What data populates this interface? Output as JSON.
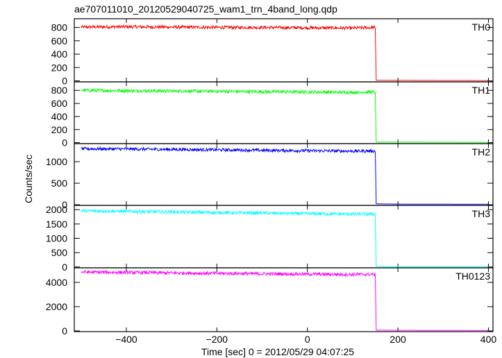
{
  "chart_data": {
    "type": "line",
    "title": "ae707011010_20120529040725_wam1_trn_4band_long.qdp",
    "xlabel": "Time [sec] 0 = 2012/05/29 04:07:25",
    "ylabel": "Counts/sec",
    "xlim": [
      -515,
      410
    ],
    "xticks": [
      -400,
      -200,
      0,
      200,
      400
    ],
    "x_tick_labels": [
      "−400",
      "−200",
      "0",
      "200",
      "400"
    ],
    "grid": false,
    "series": [
      {
        "name": "TH0",
        "color": "#ff0000",
        "ylim": [
          -15,
          930
        ],
        "yticks": [
          0,
          200,
          400,
          600,
          800
        ],
        "y_tick_labels": [
          "0",
          "200",
          "400",
          "600",
          "800"
        ],
        "x": [
          -500,
          -400,
          -300,
          -200,
          -100,
          0,
          100,
          148,
          150,
          152,
          200,
          300,
          400
        ],
        "values": [
          805,
          810,
          805,
          800,
          800,
          795,
          790,
          800,
          780,
          10,
          8,
          6,
          5
        ]
      },
      {
        "name": "TH1",
        "color": "#00ff00",
        "ylim": [
          -15,
          930
        ],
        "yticks": [
          0,
          200,
          400,
          600,
          800
        ],
        "y_tick_labels": [
          "0",
          "200",
          "400",
          "600",
          "800"
        ],
        "x": [
          -500,
          -400,
          -300,
          -200,
          -100,
          0,
          100,
          148,
          150,
          152,
          200,
          300,
          400
        ],
        "values": [
          800,
          795,
          790,
          785,
          780,
          775,
          770,
          775,
          760,
          10,
          8,
          6,
          5
        ]
      },
      {
        "name": "TH2",
        "color": "#0000ff",
        "ylim": [
          -15,
          1420
        ],
        "yticks": [
          0,
          500,
          1000
        ],
        "y_tick_labels": [
          "0",
          "500",
          "1000"
        ],
        "x": [
          -500,
          -400,
          -300,
          -200,
          -100,
          0,
          100,
          148,
          150,
          152,
          200,
          300,
          400
        ],
        "values": [
          1300,
          1295,
          1285,
          1275,
          1265,
          1255,
          1245,
          1250,
          1230,
          20,
          15,
          12,
          10
        ]
      },
      {
        "name": "TH3",
        "color": "#00ffff",
        "ylim": [
          -30,
          2150
        ],
        "yticks": [
          0,
          500,
          1000,
          1500,
          2000
        ],
        "y_tick_labels": [
          "0",
          "500",
          "1000",
          "1500",
          "2000"
        ],
        "x": [
          -500,
          -400,
          -300,
          -200,
          -100,
          0,
          100,
          148,
          150,
          152,
          200,
          300,
          400
        ],
        "values": [
          1960,
          1940,
          1920,
          1900,
          1880,
          1860,
          1845,
          1850,
          1830,
          20,
          15,
          12,
          10
        ]
      },
      {
        "name": "TH0123",
        "color": "#ff00ff",
        "ylim": [
          -60,
          5200
        ],
        "yticks": [
          0,
          2000,
          4000
        ],
        "y_tick_labels": [
          "0",
          "2000",
          "4000"
        ],
        "x": [
          -500,
          -400,
          -300,
          -200,
          -100,
          0,
          100,
          148,
          150,
          152,
          200,
          300,
          400
        ],
        "values": [
          4850,
          4820,
          4780,
          4740,
          4710,
          4680,
          4650,
          4660,
          4620,
          60,
          50,
          40,
          30
        ]
      }
    ]
  }
}
